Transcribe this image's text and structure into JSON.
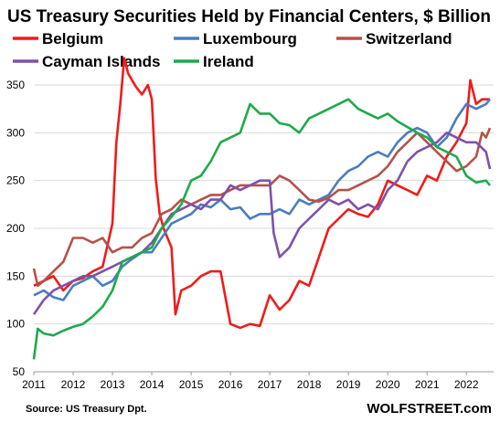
{
  "chart_data": {
    "type": "line",
    "title": "US Treasury Securities Held by Financial Centers, $ Billion",
    "xlabel": "",
    "ylabel": "",
    "xlim": [
      2011,
      2022.6
    ],
    "ylim": [
      50,
      375
    ],
    "xticks": [
      2011,
      2012,
      2013,
      2014,
      2015,
      2016,
      2017,
      2018,
      2019,
      2020,
      2021,
      2022
    ],
    "yticks": [
      50,
      100,
      150,
      200,
      250,
      300,
      350
    ],
    "grid": "horizontal",
    "legend_position": "top",
    "source": "Source: US Treasury  Dpt.",
    "brand": "WOLFSTREET.com",
    "series": [
      {
        "name": "Belgium",
        "color": "#ee1c1c",
        "x": [
          2011.0,
          2011.25,
          2011.5,
          2011.75,
          2012.0,
          2012.25,
          2012.5,
          2012.75,
          2013.0,
          2013.1,
          2013.2,
          2013.3,
          2013.4,
          2013.5,
          2013.6,
          2013.75,
          2013.9,
          2014.0,
          2014.1,
          2014.2,
          2014.3,
          2014.5,
          2014.6,
          2014.75,
          2015.0,
          2015.25,
          2015.5,
          2015.75,
          2016.0,
          2016.25,
          2016.5,
          2016.75,
          2017.0,
          2017.25,
          2017.5,
          2017.75,
          2018.0,
          2018.25,
          2018.5,
          2018.75,
          2019.0,
          2019.25,
          2019.5,
          2019.75,
          2020.0,
          2020.25,
          2020.5,
          2020.75,
          2021.0,
          2021.25,
          2021.5,
          2021.75,
          2022.0,
          2022.1,
          2022.25,
          2022.4,
          2022.6
        ],
        "y": [
          140,
          145,
          150,
          135,
          145,
          148,
          155,
          160,
          205,
          290,
          330,
          378,
          362,
          355,
          348,
          340,
          350,
          335,
          252,
          215,
          200,
          180,
          110,
          135,
          140,
          150,
          155,
          155,
          100,
          96,
          100,
          98,
          130,
          115,
          125,
          145,
          140,
          170,
          200,
          210,
          220,
          215,
          212,
          225,
          250,
          245,
          240,
          235,
          255,
          250,
          275,
          290,
          310,
          355,
          330,
          335,
          335
        ]
      },
      {
        "name": "Luxembourg",
        "color": "#4a7dbf",
        "x": [
          2011.0,
          2011.25,
          2011.5,
          2011.75,
          2012.0,
          2012.25,
          2012.5,
          2012.75,
          2013.0,
          2013.25,
          2013.5,
          2013.75,
          2014.0,
          2014.25,
          2014.5,
          2014.75,
          2015.0,
          2015.25,
          2015.5,
          2015.75,
          2016.0,
          2016.25,
          2016.5,
          2016.75,
          2017.0,
          2017.25,
          2017.5,
          2017.75,
          2018.0,
          2018.25,
          2018.5,
          2018.75,
          2019.0,
          2019.25,
          2019.5,
          2019.75,
          2020.0,
          2020.25,
          2020.5,
          2020.75,
          2021.0,
          2021.25,
          2021.5,
          2021.75,
          2022.0,
          2022.25,
          2022.5,
          2022.6
        ],
        "y": [
          130,
          135,
          128,
          125,
          140,
          145,
          150,
          140,
          145,
          160,
          168,
          175,
          175,
          190,
          205,
          210,
          215,
          225,
          222,
          230,
          220,
          222,
          210,
          215,
          215,
          220,
          215,
          230,
          225,
          230,
          235,
          250,
          260,
          265,
          275,
          280,
          275,
          290,
          300,
          305,
          300,
          285,
          295,
          315,
          330,
          325,
          330,
          335
        ]
      },
      {
        "name": "Switzerland",
        "color": "#b5514a",
        "x": [
          2011.0,
          2011.1,
          2011.25,
          2011.5,
          2011.75,
          2012.0,
          2012.25,
          2012.5,
          2012.75,
          2013.0,
          2013.25,
          2013.5,
          2013.75,
          2014.0,
          2014.25,
          2014.5,
          2014.75,
          2015.0,
          2015.25,
          2015.5,
          2015.75,
          2016.0,
          2016.25,
          2016.5,
          2016.75,
          2017.0,
          2017.25,
          2017.5,
          2017.75,
          2018.0,
          2018.25,
          2018.5,
          2018.75,
          2019.0,
          2019.25,
          2019.5,
          2019.75,
          2020.0,
          2020.25,
          2020.5,
          2020.75,
          2021.0,
          2021.25,
          2021.5,
          2021.75,
          2022.0,
          2022.25,
          2022.4,
          2022.5,
          2022.6
        ],
        "y": [
          158,
          140,
          145,
          155,
          165,
          190,
          190,
          185,
          190,
          175,
          180,
          180,
          190,
          195,
          215,
          220,
          230,
          225,
          230,
          235,
          235,
          240,
          245,
          245,
          245,
          245,
          255,
          250,
          240,
          230,
          228,
          232,
          240,
          240,
          245,
          250,
          255,
          265,
          280,
          290,
          300,
          290,
          280,
          270,
          260,
          265,
          275,
          300,
          295,
          305
        ]
      },
      {
        "name": "Cayman Islands",
        "color": "#7f52a8",
        "x": [
          2011.0,
          2011.25,
          2011.5,
          2011.75,
          2012.0,
          2012.25,
          2012.5,
          2012.75,
          2013.0,
          2013.25,
          2013.5,
          2013.75,
          2014.0,
          2014.25,
          2014.5,
          2014.75,
          2015.0,
          2015.25,
          2015.5,
          2015.75,
          2016.0,
          2016.25,
          2016.5,
          2016.75,
          2017.0,
          2017.1,
          2017.25,
          2017.5,
          2017.75,
          2018.0,
          2018.25,
          2018.5,
          2018.75,
          2019.0,
          2019.25,
          2019.5,
          2019.75,
          2020.0,
          2020.25,
          2020.5,
          2020.75,
          2021.0,
          2021.25,
          2021.5,
          2021.75,
          2022.0,
          2022.25,
          2022.5,
          2022.6
        ],
        "y": [
          110,
          125,
          135,
          140,
          145,
          150,
          150,
          155,
          160,
          165,
          170,
          175,
          185,
          200,
          215,
          220,
          225,
          220,
          230,
          230,
          245,
          240,
          245,
          250,
          250,
          195,
          170,
          180,
          200,
          210,
          220,
          230,
          225,
          230,
          220,
          225,
          220,
          240,
          250,
          270,
          280,
          285,
          290,
          300,
          295,
          290,
          290,
          280,
          262
        ]
      },
      {
        "name": "Ireland",
        "color": "#1eaa4b",
        "x": [
          2011.0,
          2011.1,
          2011.25,
          2011.5,
          2011.75,
          2012.0,
          2012.25,
          2012.5,
          2012.75,
          2013.0,
          2013.25,
          2013.5,
          2013.75,
          2014.0,
          2014.25,
          2014.5,
          2014.75,
          2015.0,
          2015.25,
          2015.5,
          2015.75,
          2016.0,
          2016.25,
          2016.5,
          2016.75,
          2017.0,
          2017.25,
          2017.5,
          2017.75,
          2018.0,
          2018.25,
          2018.5,
          2018.75,
          2019.0,
          2019.25,
          2019.5,
          2019.75,
          2020.0,
          2020.25,
          2020.5,
          2020.75,
          2021.0,
          2021.25,
          2021.5,
          2021.75,
          2022.0,
          2022.25,
          2022.5,
          2022.6
        ],
        "y": [
          63,
          95,
          90,
          88,
          93,
          97,
          100,
          108,
          118,
          135,
          165,
          170,
          175,
          180,
          200,
          212,
          225,
          250,
          255,
          270,
          290,
          295,
          300,
          330,
          320,
          320,
          310,
          308,
          300,
          315,
          320,
          325,
          330,
          335,
          325,
          320,
          315,
          320,
          312,
          306,
          300,
          295,
          285,
          280,
          275,
          255,
          248,
          250,
          245
        ]
      }
    ]
  }
}
